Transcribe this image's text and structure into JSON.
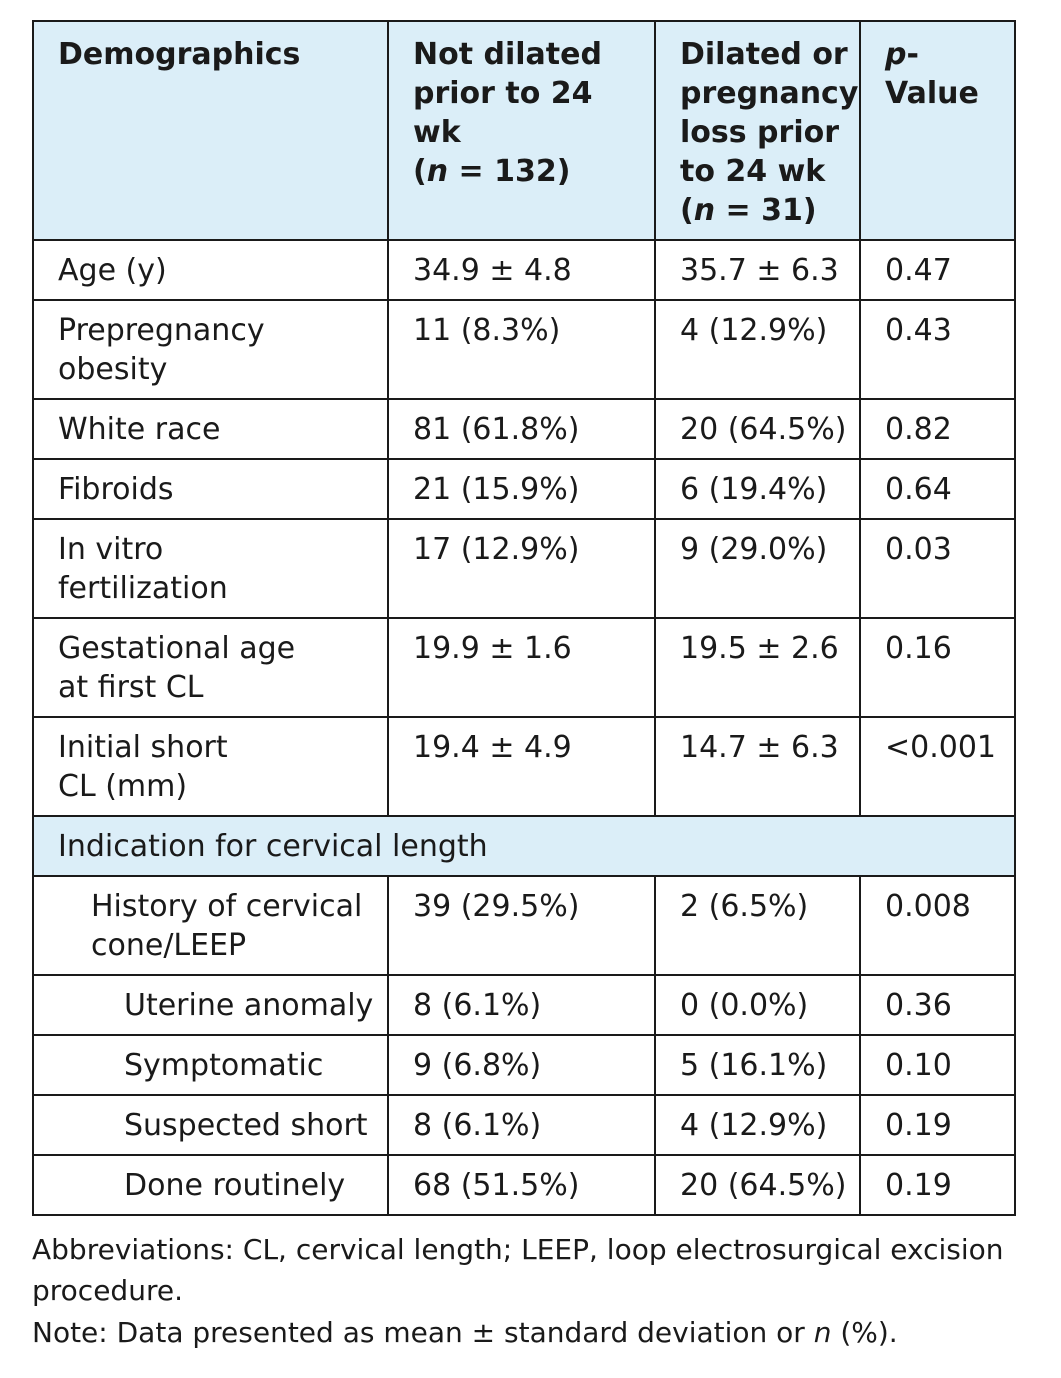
{
  "header": {
    "col1": "Demographics",
    "col2_line1": "Not dilated",
    "col2_line2": "prior to 24 wk",
    "col2_n": "132",
    "col3_line1": "Dilated or",
    "col3_line2": "pregnancy",
    "col3_line3": "loss prior",
    "col3_line4": "to 24 wk",
    "col3_n": "31",
    "col4_p": "p",
    "col4_rest": "-Value"
  },
  "rows_top": [
    {
      "label": "Age (y)",
      "not_dilated": "34.9 ± 4.8",
      "dilated": "35.7 ± 6.3",
      "p": "0.47"
    },
    {
      "label_line1": "Prepregnancy",
      "label_line2": "obesity",
      "not_dilated": "11 (8.3%)",
      "dilated": "4 (12.9%)",
      "p": "0.43"
    },
    {
      "label": "White race",
      "not_dilated": "81 (61.8%)",
      "dilated": "20 (64.5%)",
      "p": "0.82"
    },
    {
      "label": "Fibroids",
      "not_dilated": "21 (15.9%)",
      "dilated": "6 (19.4%)",
      "p": "0.64"
    },
    {
      "label_line1": "In vitro",
      "label_line2": "fertilization",
      "not_dilated": "17 (12.9%)",
      "dilated": "9 (29.0%)",
      "p": "0.03"
    },
    {
      "label_line1": "Gestational age",
      "label_line2": "at first CL",
      "not_dilated": "19.9 ± 1.6",
      "dilated": "19.5 ± 2.6",
      "p": "0.16"
    },
    {
      "label_line1": "Initial short",
      "label_line2": "CL (mm)",
      "not_dilated": "19.4 ± 4.9",
      "dilated": "14.7 ± 6.3",
      "p": "<0.001"
    }
  ],
  "section": {
    "label": "Indication for cervical length"
  },
  "rows_indication": [
    {
      "label_line1": "History of cervical",
      "label_line2": "cone/LEEP",
      "not_dilated": "39 (29.5%)",
      "dilated": "2 (6.5%)",
      "p": "0.008"
    },
    {
      "label": "Uterine anomaly",
      "not_dilated": "8 (6.1%)",
      "dilated": "0 (0.0%)",
      "p": "0.36"
    },
    {
      "label": "Symptomatic",
      "not_dilated": "9 (6.8%)",
      "dilated": "5 (16.1%)",
      "p": "0.10"
    },
    {
      "label": "Suspected short",
      "not_dilated": "8 (6.1%)",
      "dilated": "4 (12.9%)",
      "p": "0.19"
    },
    {
      "label": "Done routinely",
      "not_dilated": "68 (51.5%)",
      "dilated": "20 (64.5%)",
      "p": "0.19"
    }
  ],
  "footnotes": {
    "abbreviations_line1": "Abbreviations: CL, cervical length; LEEP, loop electrosurgical excision",
    "abbreviations_line2": "procedure.",
    "note_prefix": "Note: Data presented as mean ± standard deviation or ",
    "note_n": "n",
    "note_suffix": " (%)."
  }
}
